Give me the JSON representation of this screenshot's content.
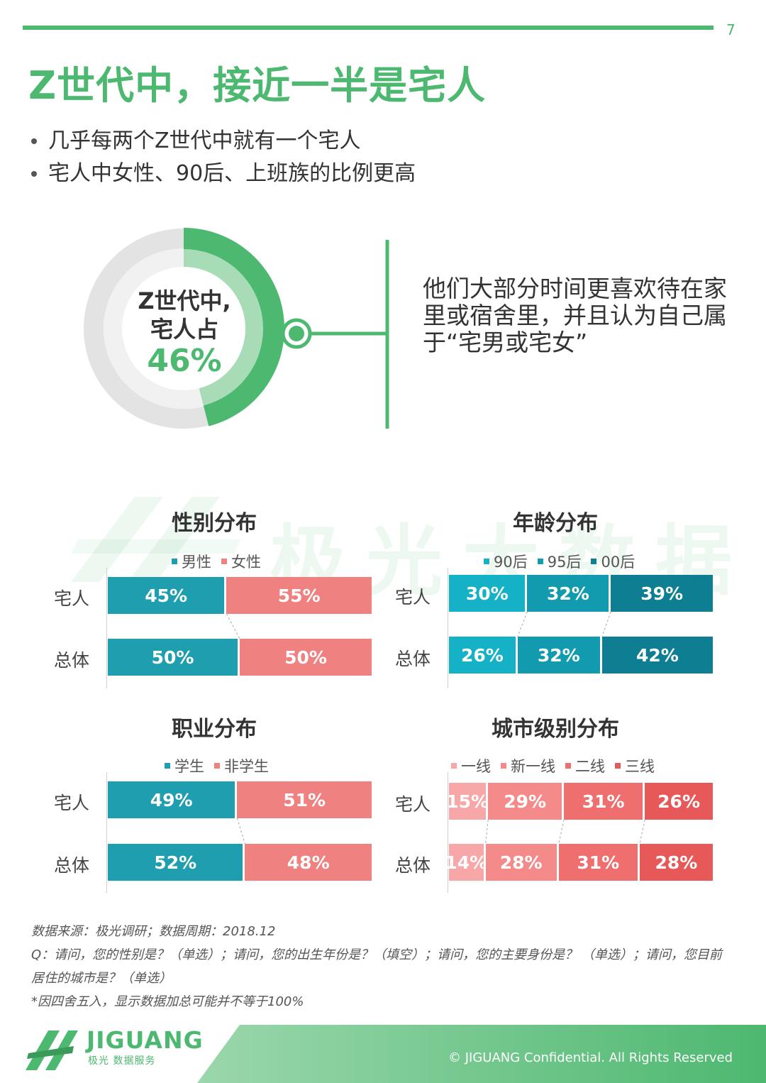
{
  "page_number": "7",
  "title": "Z世代中，接近一半是宅人",
  "bullets": [
    "几乎每两个Z世代中就有一个宅人",
    "宅人中女性、90后、上班族的比例更高"
  ],
  "donut": {
    "line1": "Z世代中,",
    "line2": "宅人占",
    "value_label": "46%",
    "value": 46,
    "colors": {
      "main": "#4db870",
      "light": "#a8dcb7",
      "track": "#e3e3e3"
    }
  },
  "note": "他们大部分时间更喜欢待在家里或宿舍里，并且认为自己属于“宅男或宅女”",
  "watermark": "极光大数据",
  "chart_data": [
    {
      "type": "bar",
      "stacked": true,
      "orientation": "horizontal",
      "title": "性别分布",
      "categories": [
        "宅人",
        "总体"
      ],
      "series": [
        {
          "name": "男性",
          "values": [
            45,
            50
          ],
          "color": "#1e9eae"
        },
        {
          "name": "女性",
          "values": [
            55,
            50
          ],
          "color": "#f08181"
        }
      ]
    },
    {
      "type": "bar",
      "stacked": true,
      "orientation": "horizontal",
      "title": "年龄分布",
      "categories": [
        "宅人",
        "总体"
      ],
      "series": [
        {
          "name": "90后",
          "values": [
            30,
            26
          ],
          "color": "#14b1c7"
        },
        {
          "name": "95后",
          "values": [
            32,
            32
          ],
          "color": "#129aae"
        },
        {
          "name": "00后",
          "values": [
            39,
            42
          ],
          "color": "#0e7f92"
        }
      ]
    },
    {
      "type": "bar",
      "stacked": true,
      "orientation": "horizontal",
      "title": "职业分布",
      "categories": [
        "宅人",
        "总体"
      ],
      "series": [
        {
          "name": "学生",
          "values": [
            49,
            52
          ],
          "color": "#1e9eae"
        },
        {
          "name": "非学生",
          "values": [
            51,
            48
          ],
          "color": "#f08181"
        }
      ]
    },
    {
      "type": "bar",
      "stacked": true,
      "orientation": "horizontal",
      "title": "城市级别分布",
      "categories": [
        "宅人",
        "总体"
      ],
      "series": [
        {
          "name": "一线",
          "values": [
            15,
            14
          ],
          "color": "#f7a7a7"
        },
        {
          "name": "新一线",
          "values": [
            29,
            28
          ],
          "color": "#f48a8a"
        },
        {
          "name": "二线",
          "values": [
            31,
            31
          ],
          "color": "#ef6e6e"
        },
        {
          "name": "三线",
          "values": [
            26,
            28
          ],
          "color": "#e75858"
        }
      ]
    }
  ],
  "sources": {
    "line1": "数据来源：极光调研；数据周期：2018.12",
    "line2": "Q：请问，您的性别是？（单选）；请问，您的出生年份是？（填空）；请问，您的主要身份是？ （单选）；请问，您目前",
    "line3": "居住的城市是？（单选）",
    "line4": "*因四舍五入，显示数据加总可能并不等于100%"
  },
  "footer": {
    "logo_text": "JIGUANG",
    "logo_sub": "极光 数据服务",
    "copyright": "© JIGUANG Confidential. All Rights Reserved"
  },
  "colors": {
    "brand_green": "#4db870"
  }
}
